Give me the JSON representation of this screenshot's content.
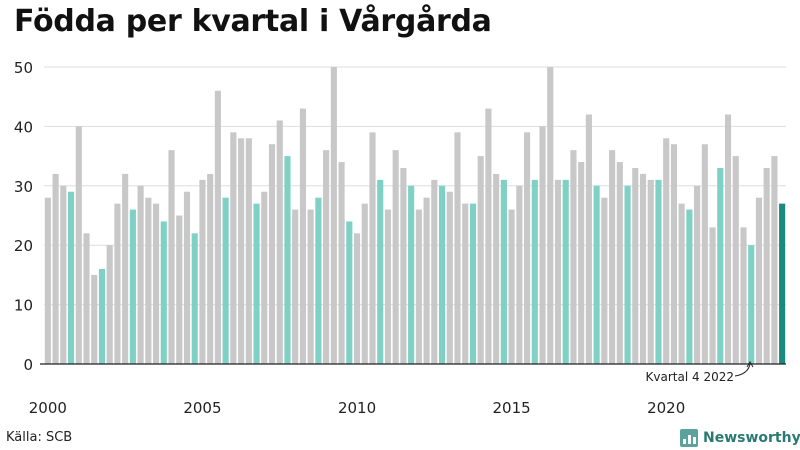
{
  "title": "Födda per kvartal i Vårgårda",
  "source": "Källa: SCB",
  "brand": "Newsworthy",
  "colors": {
    "default": "#c8c8c8",
    "q4": "#7fd1c6",
    "latest": "#1a8a7e",
    "grid": "#dddddd",
    "axis": "#222222",
    "text": "#222222"
  },
  "chart_data": {
    "type": "bar",
    "title": "Födda per kvartal i Vårgårda",
    "xlabel": "",
    "ylabel": "",
    "ylim": [
      0,
      50
    ],
    "yticks": [
      0,
      10,
      20,
      30,
      40,
      50
    ],
    "xtick_labels": [
      "2000",
      "2005",
      "2010",
      "2015",
      "2020"
    ],
    "grid": true,
    "legend": "none",
    "start": "2000 Q1",
    "end": "2023 Q4",
    "series": [
      {
        "values": [
          28,
          32,
          30,
          29,
          40,
          22,
          15,
          16,
          20,
          27,
          32,
          26,
          30,
          28,
          27,
          24,
          36,
          25,
          29,
          22,
          31,
          32,
          46,
          28,
          39,
          38,
          38,
          27,
          29,
          37,
          41,
          35,
          26,
          43,
          26,
          28,
          36,
          50,
          34,
          24,
          22,
          27,
          39,
          31,
          26,
          36,
          33,
          30,
          26,
          28,
          31,
          30,
          29,
          39,
          27,
          27,
          35,
          43,
          32,
          31,
          26,
          30,
          39,
          31,
          40,
          50,
          31,
          31,
          36,
          34,
          42,
          30,
          28,
          36,
          34,
          30,
          33,
          32,
          31,
          31,
          38,
          37,
          27,
          26,
          30,
          37,
          23,
          33,
          42,
          35,
          23,
          20,
          28,
          33,
          35,
          27
        ]
      }
    ],
    "annotation": "Kvartal 4 2022"
  }
}
